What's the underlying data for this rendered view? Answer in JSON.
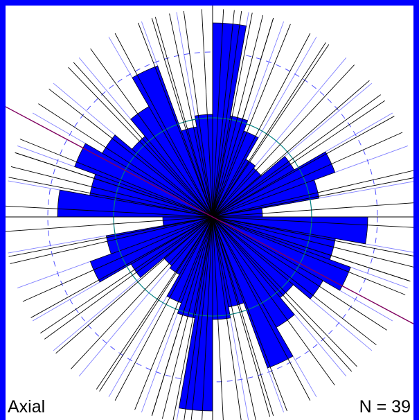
{
  "chart_data": {
    "type": "rose",
    "mode_label": "Axial",
    "n_label": "N = 39",
    "sector_width_deg": 10,
    "sector_values": [
      70,
      37,
      33,
      24,
      23,
      34,
      47,
      39,
      18,
      56,
      45,
      53,
      46,
      38,
      46,
      58,
      33,
      37
    ],
    "individual_measurements_deg": [
      3,
      8,
      11,
      14,
      17,
      22,
      28,
      34,
      43,
      49,
      54,
      61,
      66,
      77,
      86,
      93,
      101,
      104,
      108,
      112,
      118,
      123,
      128,
      136,
      144,
      152,
      159,
      164,
      168,
      172,
      177,
      186,
      197,
      213,
      236,
      259,
      288,
      318,
      343
    ],
    "mean_direction_deg": 118,
    "circles": [
      "inner_solid",
      "outer_dashed"
    ],
    "colors": {
      "sectors": "#0000ff",
      "frame": "#0000ff",
      "radial_grid": "#8080ff",
      "dashed_circle": "#5050ff",
      "inner_circle": "#008080",
      "axes": "#000000",
      "measurements": "#000000",
      "mean_line": "#800060"
    }
  }
}
